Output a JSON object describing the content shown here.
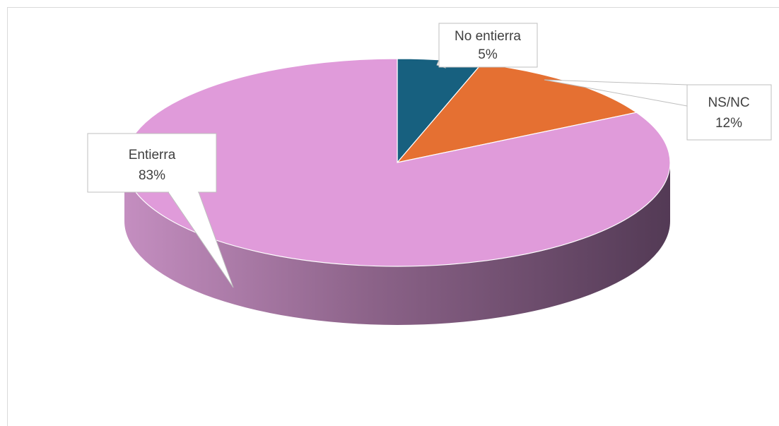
{
  "chart_data": {
    "type": "pie",
    "style": "3d",
    "title": "",
    "slices": [
      {
        "label": "No entierra",
        "percent_label": "5%",
        "value": 5,
        "color": "#17607f"
      },
      {
        "label": "NS/NC",
        "percent_label": "12%",
        "value": 12,
        "color": "#e57032"
      },
      {
        "label": "Entierra",
        "percent_label": "83%",
        "value": 83,
        "color": "#e09bda"
      }
    ],
    "legend": "none",
    "data_labels": "callouts"
  }
}
